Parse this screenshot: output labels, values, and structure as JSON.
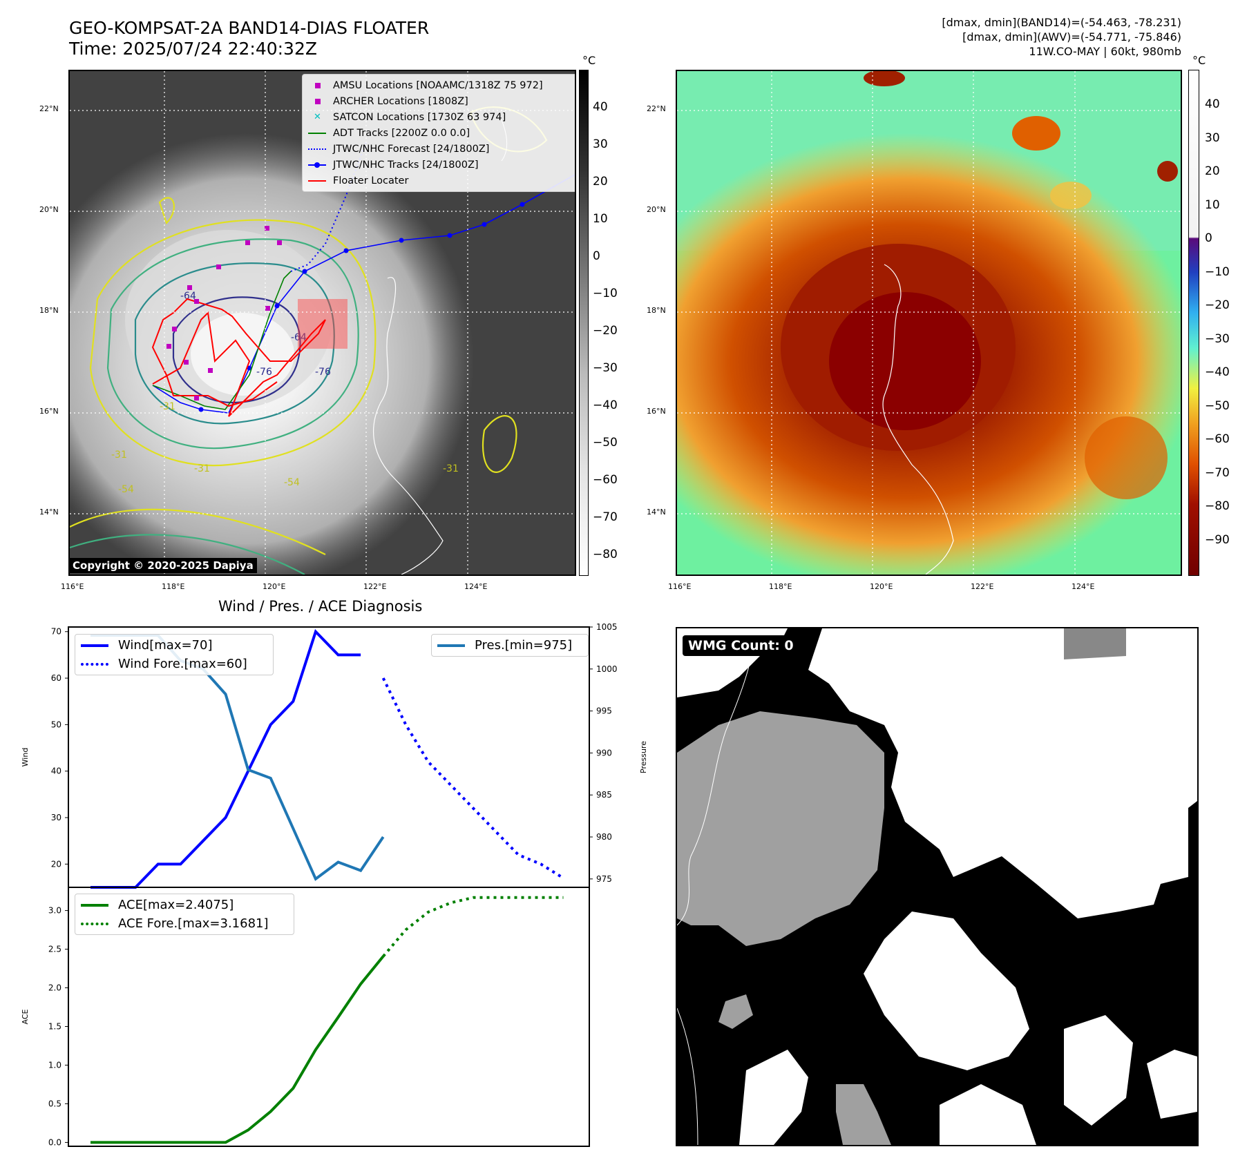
{
  "header": {
    "title": "GEO-KOMPSAT-2A BAND14-DIAS FLOATER",
    "time": "Time: 2025/07/24 22:40:32Z",
    "info_line1": "[dmax, dmin](BAND14)=(-54.463, -78.231)",
    "info_line2": "[dmax, dmin](AWV)=(-54.771, -75.846)",
    "info_line3": "11W.CO-MAY | 60kt, 980mb"
  },
  "map": {
    "lat_labels": [
      "22°N",
      "20°N",
      "18°N",
      "16°N",
      "14°N"
    ],
    "lon_labels": [
      "116°E",
      "118°E",
      "120°E",
      "122°E",
      "124°E"
    ],
    "copyright": "Copyright © 2020-2025 Dapiya",
    "contour_labels": [
      "-64",
      "-76",
      "-76",
      "-64",
      "-31",
      "-31",
      "-54",
      "-31",
      "-54",
      "-31"
    ],
    "legend": [
      {
        "label": "AMSU Locations [NOAAMC/1318Z 75 972]",
        "color": "#c000c0",
        "marker": "square"
      },
      {
        "label": "ARCHER Locations [1808Z]",
        "color": "#c000c0",
        "marker": "square"
      },
      {
        "label": "SATCON Locations [1730Z 63 974]",
        "color": "#00c0c0",
        "marker": "x"
      },
      {
        "label": "ADT Tracks [2200Z 0.0 0.0]",
        "color": "#008000",
        "marker": "line"
      },
      {
        "label": "JTWC/NHC Forecast [24/1800Z]",
        "color": "#0000ff",
        "marker": "dotted"
      },
      {
        "label": "JTWC/NHC Tracks [24/1800Z]",
        "color": "#0000ff",
        "marker": "line-dot"
      },
      {
        "label": "Floater Locater",
        "color": "#ff0000",
        "marker": "line"
      }
    ],
    "colorbar_unit": "°C",
    "colorbar_ticks": [
      "40",
      "30",
      "20",
      "10",
      "0",
      "−10",
      "−20",
      "−30",
      "−40",
      "−50",
      "−60",
      "−70",
      "−80"
    ],
    "colorbar2_unit": "°C",
    "colorbar2_ticks": [
      "40",
      "30",
      "20",
      "10",
      "0",
      "−10",
      "−20",
      "−30",
      "−40",
      "−50",
      "−60",
      "−70",
      "−80",
      "−90"
    ]
  },
  "chart_data": [
    {
      "type": "line",
      "title": "Wind / Pres. / ACE Diagnosis",
      "ylabel": "Wind",
      "y2label": "Pressure",
      "ylim": [
        15,
        71
      ],
      "y2lim": [
        974,
        1005
      ],
      "yticks": [
        20,
        30,
        40,
        50,
        60,
        70
      ],
      "y2ticks": [
        975,
        980,
        985,
        990,
        995,
        1000,
        1005
      ],
      "series": [
        {
          "name": "Wind[max=70]",
          "color": "#0000ff",
          "style": "solid",
          "x": [
            0,
            1,
            2,
            3,
            4,
            5,
            6,
            7,
            8,
            9,
            10,
            11,
            12
          ],
          "values": [
            15,
            15,
            15,
            20,
            20,
            25,
            30,
            40,
            50,
            55,
            70,
            65,
            65
          ]
        },
        {
          "name": "Wind Fore.[max=60]",
          "color": "#0000ff",
          "style": "dotted",
          "x": [
            13,
            14,
            15,
            16,
            17,
            18,
            19,
            20,
            21
          ],
          "values": [
            60,
            50,
            42,
            37,
            32,
            27,
            22,
            20,
            17
          ]
        },
        {
          "name": "Pres.[min=975]",
          "color": "#1f77b4",
          "style": "solid",
          "axis": "y2",
          "x": [
            0,
            1,
            2,
            3,
            4,
            5,
            6,
            7,
            8,
            9,
            10,
            11,
            12,
            13
          ],
          "values": [
            1004,
            1004,
            1004,
            1004,
            1001,
            1000,
            997,
            988,
            987,
            981,
            975,
            977,
            976,
            980
          ]
        }
      ]
    },
    {
      "type": "line",
      "ylabel": "ACE",
      "ylim": [
        -0.05,
        3.3
      ],
      "yticks": [
        0.0,
        0.5,
        1.0,
        1.5,
        2.0,
        2.5,
        3.0
      ],
      "series": [
        {
          "name": "ACE[max=2.4075]",
          "color": "#008000",
          "style": "solid",
          "x": [
            0,
            1,
            2,
            3,
            4,
            5,
            6,
            7,
            8,
            9,
            10,
            11,
            12,
            13
          ],
          "values": [
            0,
            0,
            0,
            0,
            0,
            0,
            0,
            0.16,
            0.4,
            0.7,
            1.2,
            1.62,
            2.05,
            2.4075
          ]
        },
        {
          "name": "ACE Fore.[max=3.1681]",
          "color": "#008000",
          "style": "dotted",
          "x": [
            13,
            14,
            15,
            16,
            17,
            18,
            19,
            20,
            21
          ],
          "values": [
            2.4075,
            2.75,
            2.98,
            3.1,
            3.1681,
            3.1681,
            3.1681,
            3.1681,
            3.1681
          ]
        }
      ]
    }
  ],
  "wmg": {
    "label": "WMG Count: 0"
  }
}
